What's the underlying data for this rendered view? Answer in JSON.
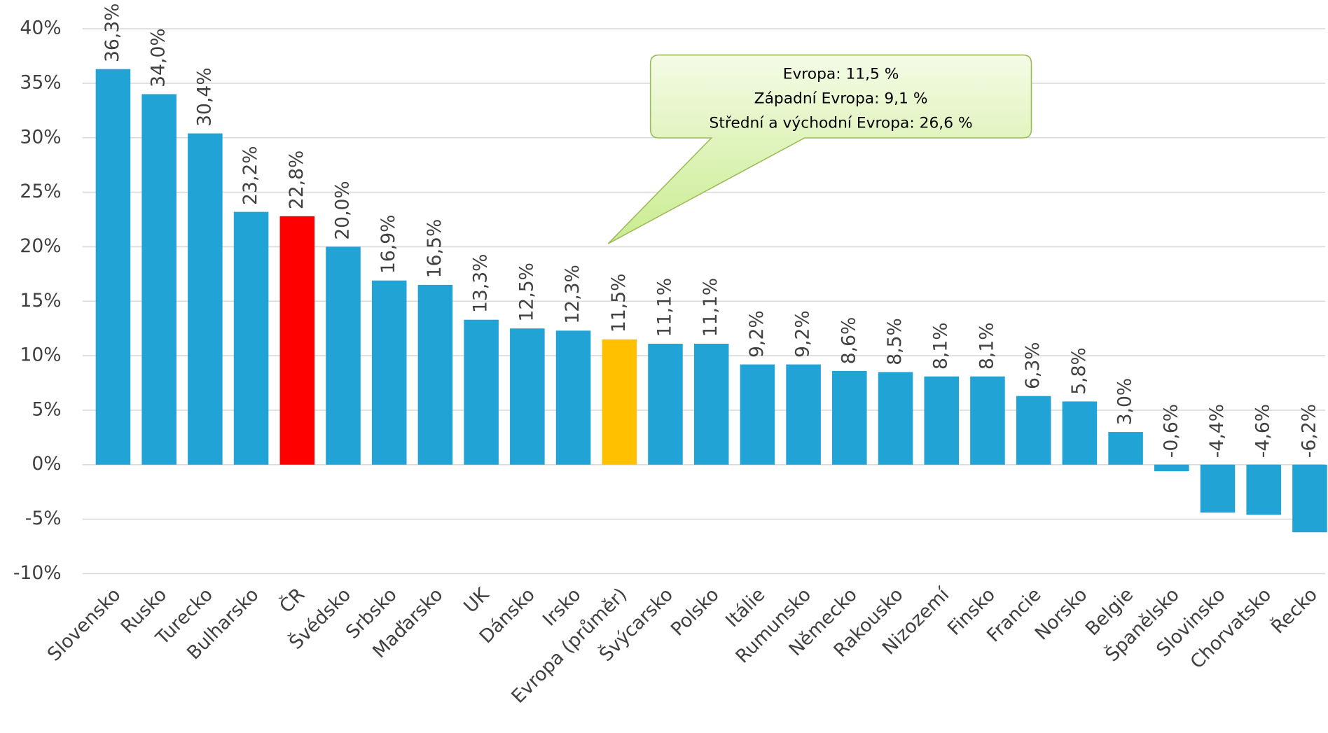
{
  "chart_data": {
    "type": "bar",
    "categories": [
      "Slovensko",
      "Rusko",
      "Turecko",
      "Bulharsko",
      "ČR",
      "Švédsko",
      "Srbsko",
      "Maďarsko",
      "UK",
      "Dánsko",
      "Irsko",
      "Evropa (průměr)",
      "Švýcarsko",
      "Polsko",
      "Itálie",
      "Rumunsko",
      "Německo",
      "Rakousko",
      "Nizozemí",
      "Finsko",
      "Francie",
      "Norsko",
      "Belgie",
      "Španělsko",
      "Slovinsko",
      "Chorvatsko",
      "Řecko"
    ],
    "values": [
      36.3,
      34.0,
      30.4,
      23.2,
      22.8,
      20.0,
      16.9,
      16.5,
      13.3,
      12.5,
      12.3,
      11.5,
      11.1,
      11.1,
      9.2,
      9.2,
      8.6,
      8.5,
      8.1,
      8.1,
      6.3,
      5.8,
      3.0,
      -0.6,
      -4.4,
      -4.6,
      -6.2
    ],
    "value_labels": [
      "36,3%",
      "34,0%",
      "30,4%",
      "23,2%",
      "22,8%",
      "20,0%",
      "16,9%",
      "16,5%",
      "13,3%",
      "12,5%",
      "12,3%",
      "11,5%",
      "11,1%",
      "11,1%",
      "9,2%",
      "9,2%",
      "8,6%",
      "8,5%",
      "8,1%",
      "8,1%",
      "6,3%",
      "5,8%",
      "3,0%",
      "-0,6%",
      "-4,4%",
      "-4,6%",
      "-6,2%"
    ],
    "colors": [
      "#21a3d5",
      "#21a3d5",
      "#21a3d5",
      "#21a3d5",
      "#ff0000",
      "#21a3d5",
      "#21a3d5",
      "#21a3d5",
      "#21a3d5",
      "#21a3d5",
      "#21a3d5",
      "#ffc000",
      "#21a3d5",
      "#21a3d5",
      "#21a3d5",
      "#21a3d5",
      "#21a3d5",
      "#21a3d5",
      "#21a3d5",
      "#21a3d5",
      "#21a3d5",
      "#21a3d5",
      "#21a3d5",
      "#21a3d5",
      "#21a3d5",
      "#21a3d5",
      "#21a3d5"
    ],
    "ylim": [
      -10,
      40
    ],
    "yticks": [
      {
        "value": -10,
        "label": "-10%"
      },
      {
        "value": -5,
        "label": "-5%"
      },
      {
        "value": 0,
        "label": "0%"
      },
      {
        "value": 5,
        "label": "5%"
      },
      {
        "value": 10,
        "label": "10%"
      },
      {
        "value": 15,
        "label": "15%"
      },
      {
        "value": 20,
        "label": "20%"
      },
      {
        "value": 25,
        "label": "25%"
      },
      {
        "value": 30,
        "label": "30%"
      },
      {
        "value": 35,
        "label": "35%"
      },
      {
        "value": 40,
        "label": "40%"
      }
    ],
    "grid": true,
    "annotation": {
      "lines": [
        "Evropa: 11,5 %",
        "Západní Evropa: 9,1 %",
        "Střední a východní Evropa: 26,6 %"
      ]
    }
  }
}
